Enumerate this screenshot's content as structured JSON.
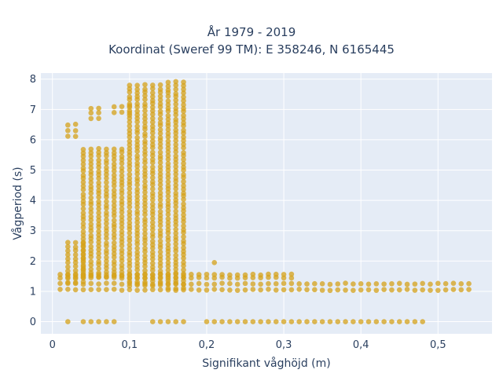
{
  "title": {
    "line1": "År 1979 - 2019",
    "line2": "Koordinat (Sweref 99 TM): E 358246, N 6165445"
  },
  "colors": {
    "marker": "#d4a21a",
    "plot_bg": "#e5ecf6",
    "grid": "#ffffff",
    "text": "#2a3f5f"
  },
  "chart_data": {
    "type": "scatter",
    "title": "År 1979 - 2019\nKoordinat (Sweref 99 TM): E 358246, N 6165445",
    "xlabel": "Signifikant våghöjd (m)",
    "ylabel": "Vågperiod (s)",
    "xlim": [
      -0.015,
      0.57
    ],
    "ylim": [
      -0.4,
      8.2
    ],
    "x_ticks": [
      0,
      0.1,
      0.2,
      0.3,
      0.4,
      0.5
    ],
    "x_tick_labels": [
      "0",
      "0,1",
      "0,2",
      "0,3",
      "0,4",
      "0,5"
    ],
    "y_ticks": [
      0,
      1,
      2,
      3,
      4,
      5,
      6,
      7,
      8
    ],
    "y_tick_labels": [
      "0",
      "1",
      "2",
      "3",
      "4",
      "5",
      "6",
      "7",
      "8"
    ],
    "grid": true,
    "legend": "none",
    "point_groups": [
      {
        "desc": "zero period, low heights",
        "x": [
          0.02,
          0.04,
          0.05,
          0.06,
          0.07,
          0.08
        ],
        "y_min": 0,
        "y_max": 0
      },
      {
        "desc": "zero period, mid heights",
        "x": [
          0.13,
          0.14,
          0.15,
          0.16,
          0.17
        ],
        "y_min": 0,
        "y_max": 0
      },
      {
        "desc": "zero period band",
        "x_start": 0.2,
        "x_end": 0.48,
        "x_step": 0.01,
        "y_min": 0,
        "y_max": 0
      },
      {
        "desc": "period ~1 band",
        "x_start": 0.01,
        "x_end": 0.54,
        "x_step": 0.01,
        "y_min": 1.05,
        "y_max": 1.25
      },
      {
        "desc": "period ~1.5 band",
        "x_start": 0.01,
        "x_end": 0.31,
        "x_step": 0.01,
        "y_min": 1.45,
        "y_max": 1.55
      },
      {
        "desc": "column cluster",
        "x": [
          0.02,
          0.03,
          0.04
        ],
        "y_min": 1.3,
        "y_max": 2.6
      },
      {
        "desc": "column cluster",
        "x": [
          0.04,
          0.05,
          0.06,
          0.07,
          0.08,
          0.09
        ],
        "y_min": 1.5,
        "y_max": 5.7
      },
      {
        "desc": "column cluster",
        "x": [
          0.1,
          0.11,
          0.12,
          0.13,
          0.14
        ],
        "y_min": 1.2,
        "y_max": 7.8
      },
      {
        "desc": "column cluster",
        "x": [
          0.15,
          0.16,
          0.17
        ],
        "y_min": 1.1,
        "y_max": 7.9
      },
      {
        "desc": "isolated",
        "x": [
          0.21
        ],
        "y_min": 1.95,
        "y_max": 1.95
      },
      {
        "desc": "isolated",
        "x": [
          0.02,
          0.03
        ],
        "y_min": 6.1,
        "y_max": 6.5
      },
      {
        "desc": "isolated",
        "x": [
          0.05,
          0.06
        ],
        "y_min": 6.7,
        "y_max": 7.05
      },
      {
        "desc": "isolated",
        "x": [
          0.08,
          0.09,
          0.1
        ],
        "y_min": 6.9,
        "y_max": 7.1
      }
    ]
  }
}
